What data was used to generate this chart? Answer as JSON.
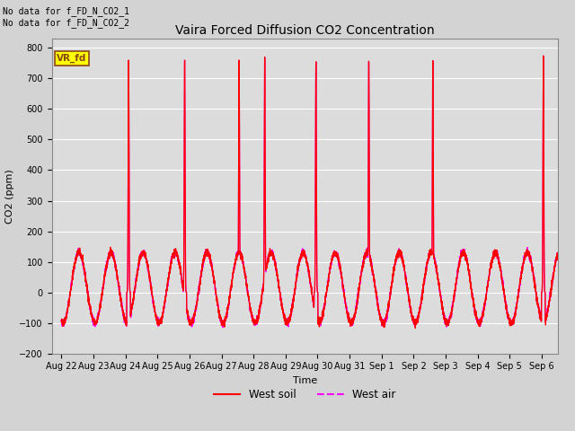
{
  "title": "Vaira Forced Diffusion CO2 Concentration",
  "xlabel": "Time",
  "ylabel": "CO2 (ppm)",
  "ylim": [
    -200,
    830
  ],
  "yticks": [
    -200,
    -100,
    0,
    100,
    200,
    300,
    400,
    500,
    600,
    700,
    800
  ],
  "n_points": 5000,
  "annotation_text": "No data for f_FD_N_CO2_1\nNo data for f_FD_N_CO2_2",
  "legend_labels": [
    "West soil",
    "West air"
  ],
  "legend_colors": [
    "#ff0000",
    "#ff00ff"
  ],
  "line_color_soil": "#ff0000",
  "line_color_air": "#ff00ff",
  "background_color": "#dcdcdc",
  "fig_facecolor": "#d3d3d3",
  "grid_color": "#ffffff",
  "vr_fd_label": "VR_fd",
  "vr_fd_bg": "#ffff00",
  "vr_fd_border": "#8b4513",
  "title_fontsize": 10,
  "axis_fontsize": 8,
  "tick_fontsize": 7,
  "annot_fontsize": 7
}
